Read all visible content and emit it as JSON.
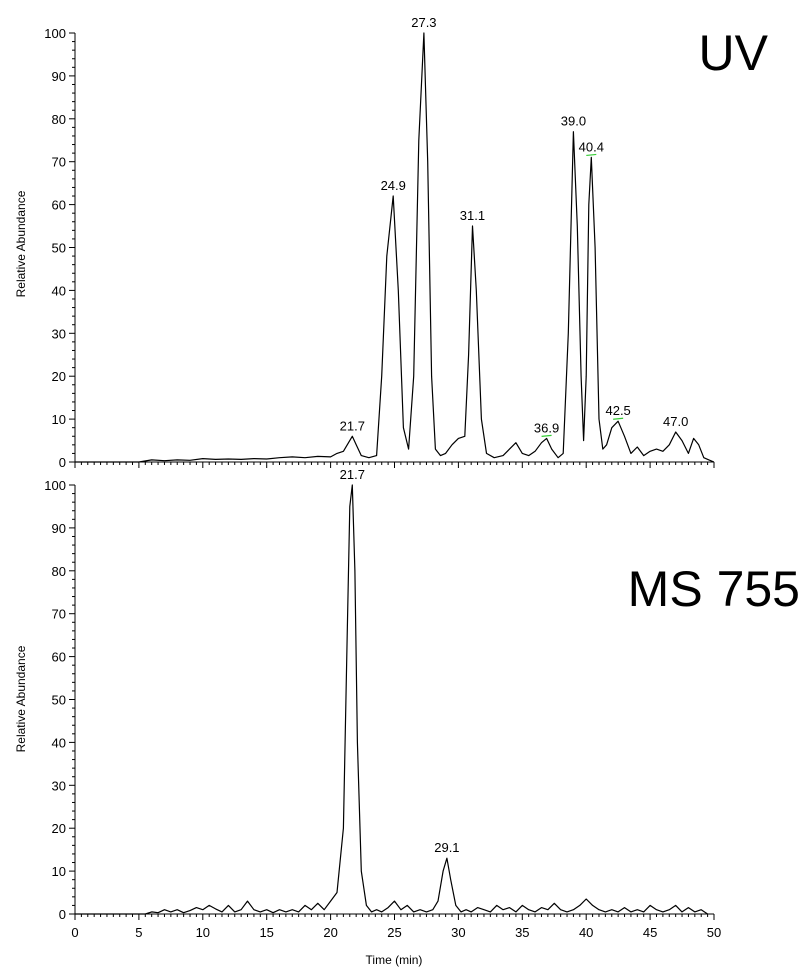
{
  "chart_data": [
    {
      "type": "line",
      "title": "UV",
      "ylabel": "Relative Abundance",
      "xlabel": "",
      "xlim": [
        0,
        50
      ],
      "ylim": [
        0,
        100
      ],
      "yticks": [
        0,
        10,
        20,
        30,
        40,
        50,
        60,
        70,
        80,
        90,
        100
      ],
      "peak_labels": [
        {
          "label": "21.7",
          "x": 21.7,
          "y": 6
        },
        {
          "label": "24.9",
          "x": 24.9,
          "y": 62
        },
        {
          "label": "27.3",
          "x": 27.3,
          "y": 100
        },
        {
          "label": "31.1",
          "x": 31.1,
          "y": 55
        },
        {
          "label": "36.9",
          "x": 36.9,
          "y": 5.5,
          "marked": true
        },
        {
          "label": "39.0",
          "x": 39.0,
          "y": 77
        },
        {
          "label": "40.4",
          "x": 40.4,
          "y": 71,
          "marked": true
        },
        {
          "label": "42.5",
          "x": 42.5,
          "y": 9.5,
          "marked": true
        },
        {
          "label": "47.0",
          "x": 47.0,
          "y": 7
        }
      ],
      "series": [
        {
          "x": [
            0,
            2,
            4,
            5,
            6,
            7,
            8,
            9,
            10,
            11,
            12,
            13,
            14,
            15,
            16,
            17,
            18,
            19,
            20,
            20.5,
            21,
            21.4,
            21.7,
            22.0,
            22.4,
            23,
            23.6,
            24.0,
            24.4,
            24.9,
            25.3,
            25.7,
            26.1,
            26.5,
            26.9,
            27.3,
            27.6,
            27.9,
            28.2,
            28.6,
            29.0,
            29.5,
            30.0,
            30.5,
            30.8,
            31.1,
            31.4,
            31.8,
            32.2,
            32.8,
            33.5,
            34.0,
            34.5,
            35.0,
            35.5,
            36.0,
            36.5,
            36.9,
            37.3,
            37.8,
            38.2,
            38.6,
            39.0,
            39.3,
            39.6,
            39.8,
            40.0,
            40.2,
            40.4,
            40.7,
            41.0,
            41.3,
            41.6,
            42.0,
            42.5,
            43.0,
            43.5,
            44.0,
            44.5,
            45.0,
            45.5,
            46.0,
            46.5,
            47.0,
            47.5,
            48.0,
            48.4,
            48.8,
            49.2,
            49.6,
            50.0
          ],
          "y": [
            0,
            0,
            0,
            0,
            0.5,
            0.3,
            0.5,
            0.4,
            0.8,
            0.6,
            0.7,
            0.6,
            0.8,
            0.7,
            1.0,
            1.2,
            1.0,
            1.3,
            1.2,
            2.0,
            2.5,
            4.5,
            6.0,
            4.0,
            1.5,
            1.0,
            1.5,
            20.0,
            48.0,
            62.0,
            40.0,
            8.0,
            3.0,
            20.0,
            75.0,
            100.0,
            70.0,
            20.0,
            3.0,
            1.5,
            2.0,
            4.0,
            5.5,
            6.0,
            25.0,
            55.0,
            40.0,
            10.0,
            2.0,
            1.0,
            1.5,
            3.0,
            4.5,
            2.0,
            1.5,
            2.5,
            4.5,
            5.5,
            3.0,
            1.0,
            2.0,
            30.0,
            77.0,
            55.0,
            20.0,
            5.0,
            20.0,
            60.0,
            71.0,
            50.0,
            10.0,
            3.0,
            4.0,
            8.0,
            9.5,
            6.0,
            2.0,
            3.5,
            1.5,
            2.5,
            3.0,
            2.5,
            4.0,
            7.0,
            5.0,
            2.0,
            5.5,
            4.0,
            1.0,
            0.5,
            0
          ]
        }
      ]
    },
    {
      "type": "line",
      "title": "MS 755",
      "ylabel": "Relative Abundance",
      "xlabel": "Time (min)",
      "xlim": [
        0,
        50
      ],
      "ylim": [
        0,
        100
      ],
      "xticks": [
        0,
        5,
        10,
        15,
        20,
        25,
        30,
        35,
        40,
        45,
        50
      ],
      "yticks": [
        0,
        10,
        20,
        30,
        40,
        50,
        60,
        70,
        80,
        90,
        100
      ],
      "peak_labels": [
        {
          "label": "21.7",
          "x": 21.7,
          "y": 100
        },
        {
          "label": "29.1",
          "x": 29.1,
          "y": 13
        }
      ],
      "series": [
        {
          "x": [
            0,
            2,
            4,
            5.5,
            6,
            6.5,
            7,
            7.5,
            8,
            8.5,
            9,
            9.5,
            10,
            10.5,
            11,
            11.5,
            12,
            12.5,
            13,
            13.5,
            14,
            14.5,
            15,
            15.5,
            16,
            16.5,
            17,
            17.5,
            18,
            18.5,
            19,
            19.5,
            20,
            20.5,
            21.0,
            21.3,
            21.5,
            21.7,
            21.9,
            22.1,
            22.4,
            22.8,
            23.2,
            23.6,
            24.0,
            24.5,
            25.0,
            25.5,
            26.0,
            26.5,
            27.0,
            27.5,
            28.0,
            28.4,
            28.8,
            29.1,
            29.4,
            29.8,
            30.2,
            30.6,
            31.0,
            31.5,
            32.0,
            32.5,
            33.0,
            33.5,
            34.0,
            34.5,
            35.0,
            35.5,
            36.0,
            36.5,
            37.0,
            37.5,
            38.0,
            38.5,
            39.0,
            39.5,
            40.0,
            40.5,
            41.0,
            41.5,
            42.0,
            42.5,
            43.0,
            43.5,
            44.0,
            44.5,
            45.0,
            45.5,
            46.0,
            46.5,
            47.0,
            47.5,
            48.0,
            48.5,
            49.0,
            49.5
          ],
          "y": [
            0,
            0,
            0,
            0,
            0.5,
            0.3,
            1.0,
            0.5,
            1.0,
            0.3,
            0.8,
            1.5,
            1.0,
            2.0,
            1.2,
            0.5,
            2.0,
            0.5,
            1.0,
            3.0,
            1.0,
            0.5,
            1.0,
            0.3,
            1.0,
            0.5,
            1.0,
            0.5,
            2.0,
            1.0,
            2.5,
            1.0,
            3.0,
            5.0,
            20.0,
            65.0,
            95.0,
            100.0,
            80.0,
            40.0,
            10.0,
            2.0,
            0.5,
            1.0,
            0.5,
            1.5,
            3.0,
            1.0,
            2.0,
            0.5,
            1.0,
            0.5,
            1.0,
            3.0,
            10.0,
            13.0,
            8.0,
            2.0,
            0.5,
            1.0,
            0.5,
            1.5,
            1.0,
            0.5,
            2.0,
            1.0,
            1.5,
            0.5,
            2.0,
            1.0,
            0.5,
            1.5,
            1.0,
            2.5,
            1.0,
            0.5,
            1.0,
            2.0,
            3.5,
            2.0,
            1.0,
            0.5,
            1.0,
            0.5,
            1.5,
            0.5,
            1.0,
            0.5,
            2.0,
            1.0,
            0.5,
            1.0,
            2.0,
            0.5,
            1.5,
            0.5,
            1.0,
            0
          ]
        }
      ]
    }
  ]
}
